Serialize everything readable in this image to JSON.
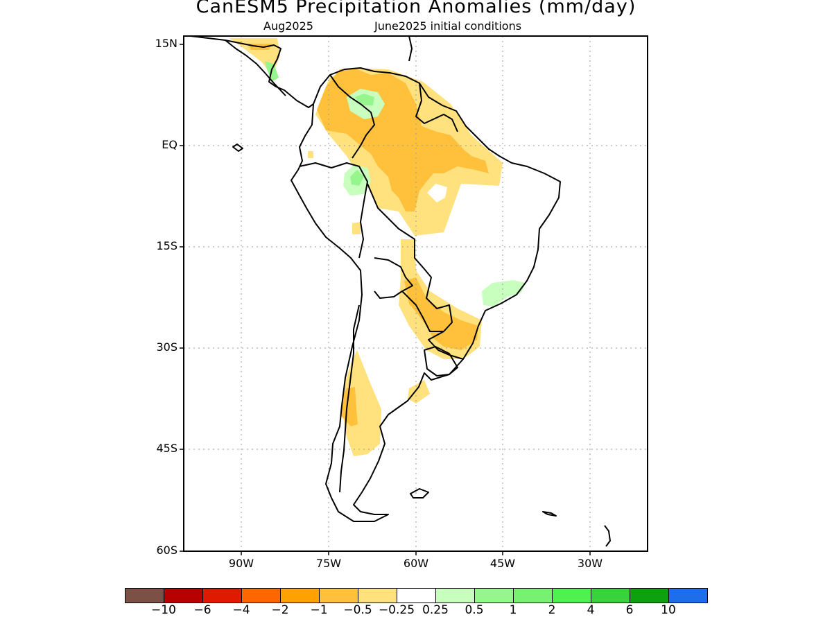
{
  "header": {
    "title": "CanESM5 Precipitation Anomalies (mm/day)",
    "subtitle_left": "Aug2025",
    "subtitle_right": "June2025 initial conditions"
  },
  "map": {
    "lon_range": [
      -97,
      -23
    ],
    "lat_range": [
      -60,
      16
    ],
    "y_ticks": [
      {
        "lat": 15,
        "label": "15N"
      },
      {
        "lat": 0,
        "label": "EQ"
      },
      {
        "lat": -15,
        "label": "15S"
      },
      {
        "lat": -30,
        "label": "30S"
      },
      {
        "lat": -45,
        "label": "45S"
      },
      {
        "lat": -60,
        "label": "60S"
      }
    ],
    "x_ticks": [
      {
        "lon": -90,
        "label": "90W"
      },
      {
        "lon": -75,
        "label": "75W"
      },
      {
        "lon": -60,
        "label": "60W"
      },
      {
        "lon": -45,
        "label": "45W"
      },
      {
        "lon": -30,
        "label": "30W"
      }
    ],
    "gridlines": "dotted",
    "coastline_color": "#000000"
  },
  "colorbar": {
    "colors": [
      "#7b5146",
      "#b80000",
      "#e01a00",
      "#ff6600",
      "#ffa200",
      "#ffc13c",
      "#ffe17e",
      "#ffffff",
      "#c8ffbe",
      "#96f58c",
      "#78f072",
      "#50f050",
      "#37d23c",
      "#0fa00f",
      "#1e6eeb"
    ],
    "labels": [
      "−10",
      "−6",
      "−4",
      "−2",
      "−1",
      "−0.5",
      "−0.25",
      "0.25",
      "0.5",
      "1",
      "2",
      "4",
      "6",
      "10"
    ]
  }
}
